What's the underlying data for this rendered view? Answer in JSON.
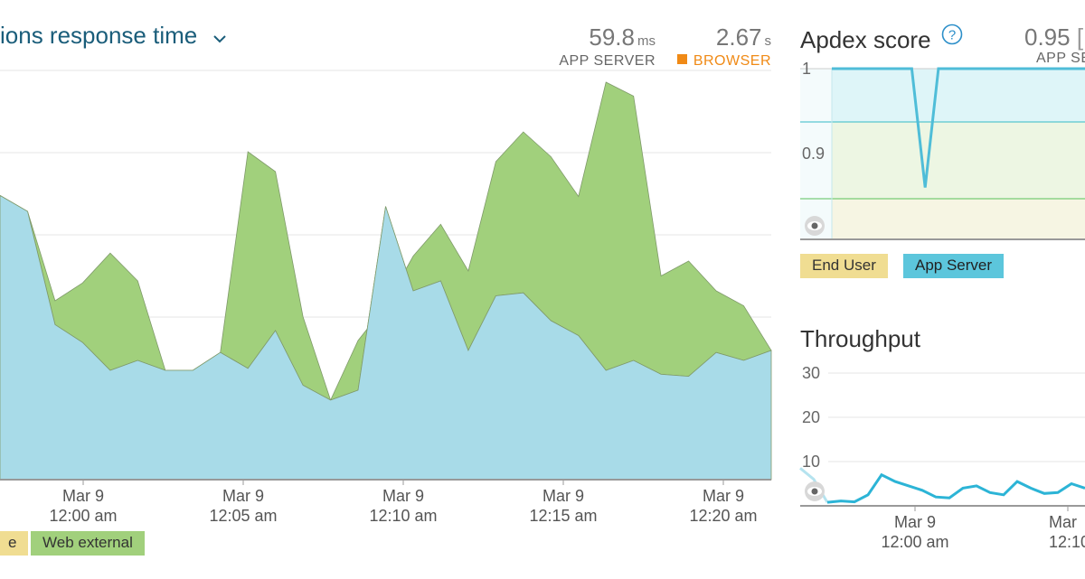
{
  "response_panel": {
    "title": "ions response time",
    "app_server": {
      "value": "59.8",
      "unit": "ms",
      "label": "APP SERVER"
    },
    "browser": {
      "value": "2.67",
      "unit": "s",
      "label": "BROWSER"
    },
    "legend": [
      "e",
      "Web external"
    ],
    "x_ticks": [
      {
        "date": "Mar 9",
        "time": "12:00 am"
      },
      {
        "date": "Mar 9",
        "time": "12:05 am"
      },
      {
        "date": "Mar 9",
        "time": "12:10 am"
      },
      {
        "date": "Mar 9",
        "time": "12:15 am"
      },
      {
        "date": "Mar 9",
        "time": "12:20 am"
      }
    ]
  },
  "apdex_panel": {
    "title": "Apdex score",
    "help_icon": "question-circle-icon",
    "score": "0.95",
    "score_label": "APP SER",
    "y_ticks": [
      "1",
      "0.9"
    ],
    "legend": [
      "End User",
      "App Server"
    ]
  },
  "throughput_panel": {
    "title": "Throughput",
    "y_ticks": [
      "30",
      "20",
      "10"
    ],
    "x_ticks": [
      {
        "date": "Mar 9",
        "time": "12:00 am"
      },
      {
        "date": "Mar",
        "time": "12:10"
      }
    ]
  },
  "colors": {
    "app_server": "#a8dbe8",
    "web_external": "#a1d07c",
    "end_user": "#f0dd92",
    "browser": "#f08a16",
    "throughput_line": "#2cb4d6"
  },
  "chart_data": [
    {
      "type": "area",
      "series": [
        {
          "name": "e",
          "values": [
            286,
            270,
            156,
            138,
            110,
            120,
            110,
            110,
            128,
            112,
            150,
            95,
            80,
            90,
            275,
            190,
            200,
            130,
            185,
            188,
            160,
            145,
            110,
            120,
            106,
            104,
            128,
            120,
            130
          ]
        },
        {
          "name": "Web external",
          "values": [
            286,
            270,
            180,
            198,
            228,
            200,
            110,
            110,
            128,
            330,
            310,
            164,
            80,
            140,
            175,
            225,
            257,
            210,
            320,
            350,
            325,
            285,
            400,
            386,
            205,
            220,
            190,
            175,
            130
          ]
        }
      ],
      "x_ticks": [
        "Mar 9 12:00 am",
        "Mar 9 12:05 am",
        "Mar 9 12:10 am",
        "Mar 9 12:15 am",
        "Mar 9 12:20 am"
      ]
    },
    {
      "type": "line",
      "y_ticks": [
        "1",
        "0.9"
      ],
      "series": [
        {
          "name": "App Server",
          "values": [
            1,
            1,
            1,
            1,
            1,
            1,
            1,
            0.86,
            1,
            1,
            1,
            1,
            1,
            1,
            1,
            1,
            1,
            1,
            1,
            1
          ]
        },
        {
          "name": "End User",
          "values": []
        }
      ]
    },
    {
      "type": "line",
      "y_ticks": [
        "30",
        "20",
        "10"
      ],
      "series": [
        {
          "name": "",
          "values": [
            8.5,
            6,
            0.8,
            1.1,
            0.9,
            2.5,
            7,
            5.5,
            4.5,
            3.5,
            2,
            1.8,
            4,
            4.5,
            3,
            2.5,
            5.5,
            4,
            2.8,
            3,
            5,
            4
          ]
        }
      ],
      "x_ticks": [
        "Mar 9 12:00 am",
        "Mar 12:10"
      ]
    }
  ]
}
